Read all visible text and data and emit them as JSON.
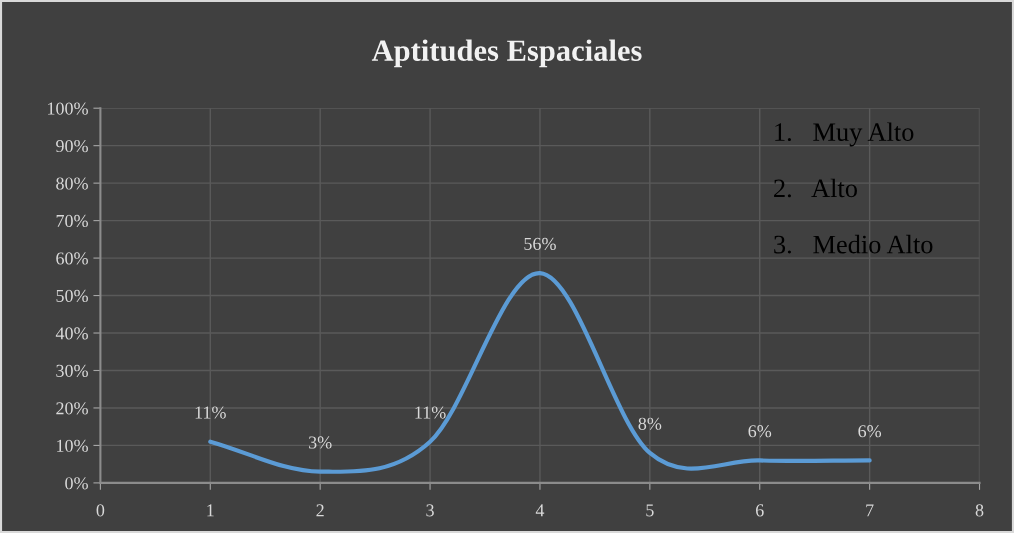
{
  "chart_data": {
    "type": "line",
    "title": "Aptitudes Espaciales",
    "x": [
      1,
      2,
      3,
      4,
      5,
      6,
      7
    ],
    "series": [
      {
        "color": "#5b9bd5",
        "values": [
          11,
          3,
          11,
          56,
          8,
          6,
          6
        ],
        "value_labels": [
          "11%",
          "3%",
          "11%",
          "56%",
          "8%",
          "6%",
          "6%"
        ]
      }
    ],
    "xlim": [
      0,
      8
    ],
    "xticks": [
      0,
      1,
      2,
      3,
      4,
      5,
      6,
      7,
      8
    ],
    "ylim": [
      0,
      100
    ],
    "yticks": [
      {
        "value": 0,
        "label": "0%"
      },
      {
        "value": 10,
        "label": "10%"
      },
      {
        "value": 20,
        "label": "20%"
      },
      {
        "value": 30,
        "label": "30%"
      },
      {
        "value": 40,
        "label": "40%"
      },
      {
        "value": 50,
        "label": "50%"
      },
      {
        "value": 60,
        "label": "60%"
      },
      {
        "value": 70,
        "label": "70%"
      },
      {
        "value": 80,
        "label": "80%"
      },
      {
        "value": 90,
        "label": "90%"
      },
      {
        "value": 100,
        "label": "100%"
      }
    ],
    "grid": true,
    "marker": "none",
    "line_style": "solid",
    "annotations": [
      "1.   Muy Alto",
      "2.   Alto",
      "3.   Medio Alto"
    ]
  }
}
